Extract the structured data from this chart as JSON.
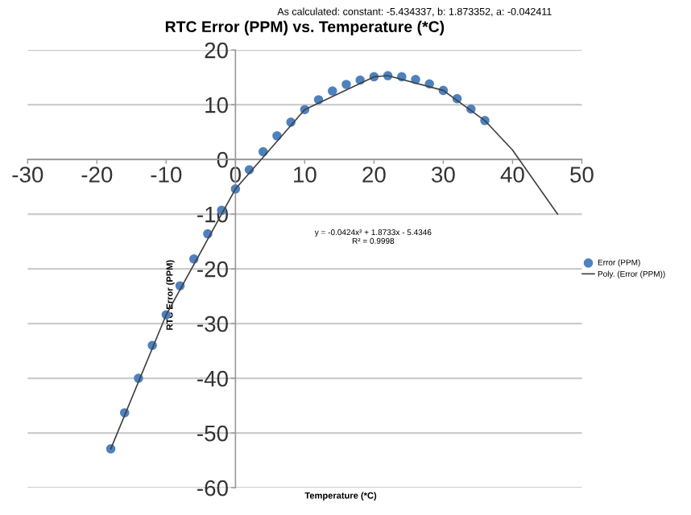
{
  "chart_data": {
    "type": "scatter",
    "title": "RTC Error (PPM) vs. Temperature (*C)",
    "xlabel": "Temperature (*C)",
    "ylabel": "RTC Error (PPM)",
    "annotations": [
      "As calculated: constant: -5.434337, b: 1.873352, a: -0.042411",
      "y = -0.0424x² + 1.8733x - 5.4346\nR² = 0.9998"
    ],
    "xlim": [
      -30,
      50
    ],
    "xticks": [
      -30,
      -20,
      -10,
      0,
      10,
      20,
      30,
      40,
      50
    ],
    "ylim": [
      -60,
      20
    ],
    "yticks": [
      -60,
      -50,
      -40,
      -30,
      -20,
      -10,
      0,
      10,
      20
    ],
    "grid": "y",
    "legend": "right",
    "series": [
      {
        "name": "Error (PPM)",
        "marker": "circle",
        "color": "#4f81bd",
        "x": [
          -18,
          -16,
          -14,
          -12,
          -10,
          -8,
          -6,
          -4,
          -2,
          0,
          2,
          4,
          6,
          8,
          10,
          12,
          14,
          16,
          18,
          20,
          22,
          24,
          26,
          28,
          30,
          32,
          34,
          36
        ],
        "values": [
          -52.9,
          -46.3,
          -40.0,
          -34.0,
          -28.4,
          -23.1,
          -18.2,
          -13.6,
          -9.3,
          -5.4,
          -1.9,
          1.4,
          4.3,
          6.8,
          9.1,
          10.9,
          12.5,
          13.7,
          14.5,
          15.1,
          15.3,
          15.1,
          14.6,
          13.8,
          12.6,
          11.1,
          9.2,
          7.1
        ]
      },
      {
        "name": "Poly. (Error (PPM))",
        "type": "line",
        "color": "#404040",
        "line_style": "solid",
        "x": [
          -18,
          -10,
          0,
          10,
          20,
          22,
          30,
          36,
          40,
          46.5
        ],
        "values": [
          -52.9,
          -28.4,
          -5.4,
          9.1,
          15.1,
          15.3,
          12.6,
          7.1,
          1.7,
          -10.0
        ]
      }
    ]
  }
}
